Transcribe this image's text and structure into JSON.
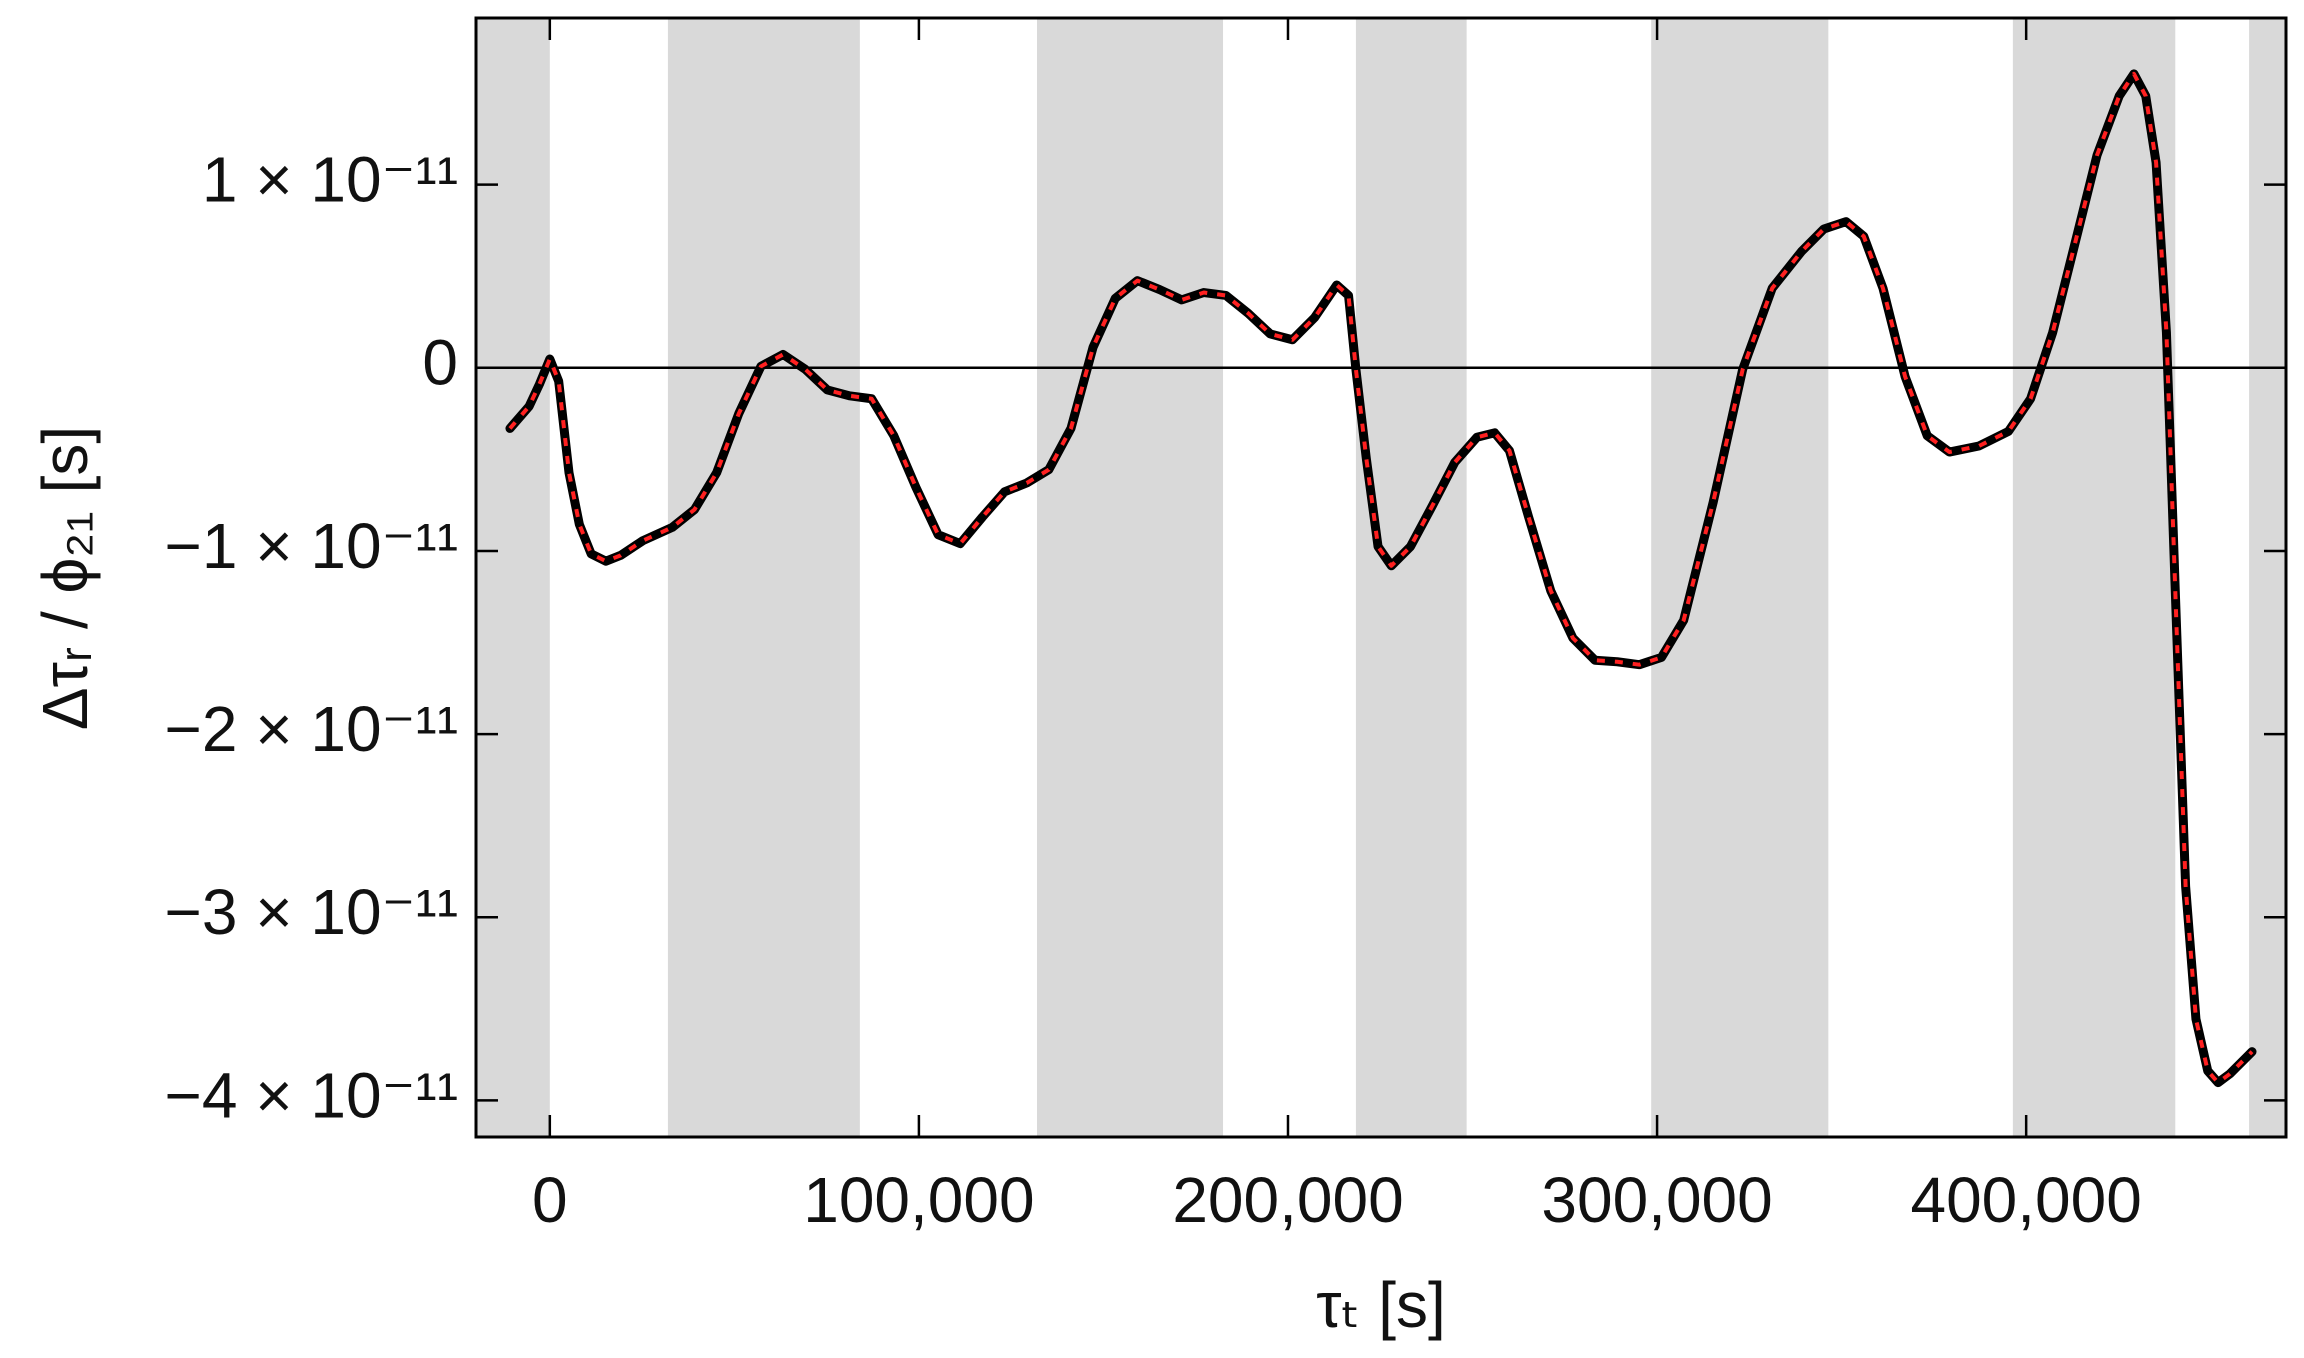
{
  "chart_data": {
    "type": "line",
    "xlabel": "τₜ [s]",
    "ylabel": "Δτᵣ / ϕ₂₁ [s]",
    "xlim": [
      -20000,
      470400
    ],
    "ylim": [
      -4.2e-11,
      1.91e-11
    ],
    "xticks": [
      0,
      {
        "value": 100000,
        "label": "100,000"
      },
      {
        "value": 200000,
        "label": "200,000"
      },
      {
        "value": 300000,
        "label": "300,000"
      },
      {
        "value": 400000,
        "label": "400,000"
      }
    ],
    "yticks": [
      {
        "value": -4e-11,
        "label": "−4 × 10⁻¹¹"
      },
      {
        "value": -3e-11,
        "label": "−3 × 10⁻¹¹"
      },
      {
        "value": -2e-11,
        "label": "−2 × 10⁻¹¹"
      },
      {
        "value": -1e-11,
        "label": "−1 × 10⁻¹¹"
      },
      0,
      {
        "value": 1e-11,
        "label": "1 × 10⁻¹¹"
      }
    ],
    "zero_line": true,
    "shaded_regions": [
      [
        -20000,
        0
      ],
      [
        32000,
        84000
      ],
      [
        132000,
        182400
      ],
      [
        218400,
        248400
      ],
      [
        298400,
        346400
      ],
      [
        396400,
        440400
      ],
      [
        460400,
        470400
      ]
    ],
    "shade_color": "#d9d9d9",
    "x": [
      -10800,
      -5600,
      -2800,
      0,
      2400,
      5200,
      8000,
      11200,
      15200,
      19200,
      25200,
      33200,
      39200,
      45200,
      51200,
      57200,
      63200,
      69200,
      75200,
      81200,
      87200,
      93200,
      99200,
      105200,
      111200,
      117200,
      123200,
      129200,
      135200,
      141200,
      147200,
      153200,
      159200,
      165200,
      171200,
      177200,
      183200,
      189200,
      195200,
      201200,
      207200,
      213200,
      216400,
      218400,
      221200,
      224400,
      228000,
      233200,
      239200,
      245200,
      251200,
      256000,
      260000,
      265200,
      271200,
      277200,
      283200,
      289200,
      295200,
      301200,
      307200,
      315200,
      323200,
      331200,
      339200,
      345200,
      351200,
      356000,
      361200,
      367200,
      373200,
      379200,
      387200,
      395200,
      401200,
      407200,
      413200,
      419200,
      425200,
      429200,
      432400,
      435200,
      438000,
      440400,
      443200,
      446000,
      449200,
      452000,
      455200,
      461200
    ],
    "series": [
      {
        "color": "#000000",
        "dash": false,
        "values": [
          -3.31e-12,
          -2.1e-12,
          -8.9e-13,
          4.8e-13,
          -7.3e-13,
          -5.73e-12,
          -8.55e-12,
          -1.016e-11,
          -1.056e-11,
          -1.024e-11,
          -9.44e-12,
          -8.71e-12,
          -7.74e-12,
          -5.73e-12,
          -2.5e-12,
          8e-14,
          7.3e-13,
          -8e-14,
          -1.21e-12,
          -1.53e-12,
          -1.69e-12,
          -3.71e-12,
          -6.53e-12,
          -9.11e-12,
          -9.6e-12,
          -8.15e-12,
          -6.77e-12,
          -6.29e-12,
          -5.56e-12,
          -3.31e-12,
          1.13e-12,
          3.79e-12,
          4.76e-12,
          4.27e-12,
          3.71e-12,
          4.11e-12,
          3.95e-12,
          2.98e-12,
          1.85e-12,
          1.53e-12,
          2.74e-12,
          4.52e-12,
          3.95e-12,
          -8e-14,
          -4.92e-12,
          -9.76e-12,
          -1.081e-11,
          -9.76e-12,
          -7.5e-12,
          -5.16e-12,
          -3.79e-12,
          -3.55e-12,
          -4.52e-12,
          -8.15e-12,
          -1.218e-11,
          -1.476e-11,
          -1.597e-11,
          -1.605e-11,
          -1.621e-11,
          -1.581e-11,
          -1.379e-11,
          -7.34e-12,
          -8e-14,
          4.35e-12,
          6.37e-12,
          7.58e-12,
          7.98e-12,
          7.18e-12,
          4.35e-12,
          -4.8e-13,
          -3.71e-12,
          -4.6e-12,
          -4.27e-12,
          -3.47e-12,
          -1.69e-12,
          1.94e-12,
          6.77e-12,
          1.161e-11,
          1.484e-11,
          1.605e-11,
          1.484e-11,
          1.121e-11,
          1.94e-12,
          -1.218e-11,
          -2.831e-11,
          -3.556e-11,
          -3.839e-11,
          -3.903e-11,
          -3.855e-11,
          -3.734e-11
        ]
      },
      {
        "color": "#ff2020",
        "dash": true,
        "values": [
          -3.31e-12,
          -2.1e-12,
          -8.9e-13,
          4.8e-13,
          -7.3e-13,
          -5.73e-12,
          -8.55e-12,
          -1.016e-11,
          -1.056e-11,
          -1.024e-11,
          -9.44e-12,
          -8.71e-12,
          -7.74e-12,
          -5.73e-12,
          -2.5e-12,
          8e-14,
          7.3e-13,
          -8e-14,
          -1.21e-12,
          -1.53e-12,
          -1.69e-12,
          -3.71e-12,
          -6.53e-12,
          -9.11e-12,
          -9.6e-12,
          -8.15e-12,
          -6.77e-12,
          -6.29e-12,
          -5.56e-12,
          -3.31e-12,
          1.13e-12,
          3.79e-12,
          4.76e-12,
          4.27e-12,
          3.71e-12,
          4.11e-12,
          3.95e-12,
          2.98e-12,
          1.85e-12,
          1.53e-12,
          2.74e-12,
          4.52e-12,
          3.95e-12,
          -8e-14,
          -4.92e-12,
          -9.76e-12,
          -1.081e-11,
          -9.76e-12,
          -7.5e-12,
          -5.16e-12,
          -3.79e-12,
          -3.55e-12,
          -4.52e-12,
          -8.15e-12,
          -1.218e-11,
          -1.476e-11,
          -1.597e-11,
          -1.605e-11,
          -1.621e-11,
          -1.581e-11,
          -1.379e-11,
          -7.34e-12,
          -8e-14,
          4.35e-12,
          6.37e-12,
          7.58e-12,
          7.98e-12,
          7.18e-12,
          4.35e-12,
          -4.8e-13,
          -3.71e-12,
          -4.6e-12,
          -4.27e-12,
          -3.47e-12,
          -1.69e-12,
          1.94e-12,
          6.77e-12,
          1.161e-11,
          1.484e-11,
          1.605e-11,
          1.484e-11,
          1.121e-11,
          1.94e-12,
          -1.218e-11,
          -2.831e-11,
          -3.556e-11,
          -3.839e-11,
          -3.903e-11,
          -3.855e-11,
          -3.734e-11
        ]
      }
    ]
  }
}
